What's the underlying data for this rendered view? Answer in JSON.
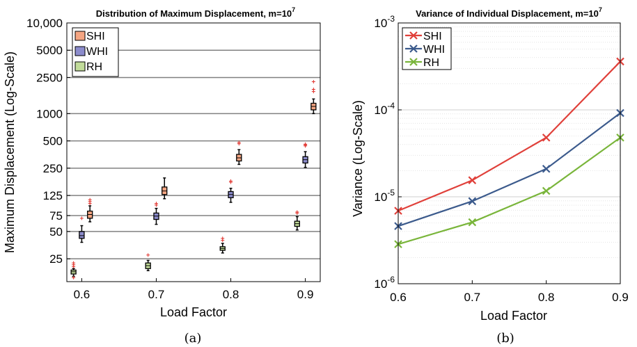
{
  "chart_data": [
    {
      "type": "box",
      "title": "Distribution of Maximum Displacement, m=10",
      "title_exponent": "7",
      "xlabel": "Load Factor",
      "ylabel": "Maximum Displacement (Log-Scale)",
      "y_scale": "log",
      "ylim": [
        14,
        10000
      ],
      "xlim": [
        0.58,
        0.92
      ],
      "x_ticks": [
        "0.6",
        "0.7",
        "0.8",
        "0.9"
      ],
      "y_ticks": [
        "25",
        "50",
        "75",
        "125",
        "250",
        "500",
        "1000",
        "2500",
        "5000",
        "10,000"
      ],
      "grid": "horizontal",
      "legend_position": "top-left",
      "caption": "(a)",
      "series": [
        {
          "name": "SHI",
          "color": "#f4a582",
          "boxes": [
            {
              "x": 0.6,
              "whisker_low": 64,
              "q1": 70,
              "median": 77,
              "q3": 84,
              "whisker_high": 96,
              "outliers": [
                102,
                107,
                112
              ]
            },
            {
              "x": 0.7,
              "whisker_low": 115,
              "q1": 128,
              "median": 140,
              "q3": 155,
              "whisker_high": 195,
              "outliers": []
            },
            {
              "x": 0.8,
              "whisker_low": 275,
              "q1": 300,
              "median": 325,
              "q3": 355,
              "whisker_high": 400,
              "outliers": [
                465,
                480
              ]
            },
            {
              "x": 0.9,
              "whisker_low": 1000,
              "q1": 1100,
              "median": 1200,
              "q3": 1300,
              "whisker_high": 1450,
              "outliers": [
                1750,
                1850,
                2250
              ]
            }
          ]
        },
        {
          "name": "WHI",
          "color": "#8c8ccc",
          "boxes": [
            {
              "x": 0.6,
              "whisker_low": 38,
              "q1": 42,
              "median": 45,
              "q3": 50,
              "whisker_high": 58,
              "outliers": [
                70
              ]
            },
            {
              "x": 0.7,
              "whisker_low": 60,
              "q1": 68,
              "median": 74,
              "q3": 80,
              "whisker_high": 90,
              "outliers": [
                98,
                102
              ]
            },
            {
              "x": 0.8,
              "whisker_low": 105,
              "q1": 118,
              "median": 128,
              "q3": 138,
              "whisker_high": 150,
              "outliers": [
                175,
                180
              ]
            },
            {
              "x": 0.9,
              "whisker_low": 255,
              "q1": 285,
              "median": 310,
              "q3": 335,
              "whisker_high": 380,
              "outliers": [
                440,
                450,
                460
              ]
            }
          ]
        },
        {
          "name": "RH",
          "color": "#c2dc9a",
          "boxes": [
            {
              "x": 0.6,
              "whisker_low": 16,
              "q1": 17,
              "median": 18,
              "q3": 18.8,
              "whisker_high": 19.5,
              "outliers": [
                15.5,
                20.5,
                21.5,
                22.5
              ]
            },
            {
              "x": 0.7,
              "whisker_low": 18.5,
              "q1": 19.5,
              "median": 21,
              "q3": 22.5,
              "whisker_high": 24,
              "outliers": [
                27.5
              ]
            },
            {
              "x": 0.8,
              "whisker_low": 29,
              "q1": 31,
              "median": 32.5,
              "q3": 34,
              "whisker_high": 37,
              "outliers": [
                40,
                42
              ]
            },
            {
              "x": 0.9,
              "whisker_low": 52,
              "q1": 57,
              "median": 61,
              "q3": 65,
              "whisker_high": 73,
              "outliers": [
                80,
                82
              ]
            }
          ]
        }
      ]
    },
    {
      "type": "line",
      "title": "Variance of Individual Displacement, m=10",
      "title_exponent": "7",
      "xlabel": "Load Factor",
      "ylabel": "Variance (Log-Scale)",
      "y_scale": "log",
      "ylim": [
        1e-06,
        0.001
      ],
      "xlim": [
        0.6,
        0.9
      ],
      "x_ticks": [
        "0.6",
        "0.7",
        "0.8",
        "0.9"
      ],
      "y_ticks": [
        {
          "base": "10",
          "exp": "-6"
        },
        {
          "base": "10",
          "exp": "-5"
        },
        {
          "base": "10",
          "exp": "-4"
        },
        {
          "base": "10",
          "exp": "-3"
        }
      ],
      "grid": "horizontal-minor",
      "legend_position": "top-left",
      "caption": "(b)",
      "x": [
        0.6,
        0.7,
        0.8,
        0.9
      ],
      "series": [
        {
          "name": "SHI",
          "color": "#e0403a",
          "marker": "x",
          "values": [
            6.9e-06,
            1.55e-05,
            4.8e-05,
            0.00036
          ]
        },
        {
          "name": "WHI",
          "color": "#3b5a8c",
          "marker": "x",
          "values": [
            4.6e-06,
            8.9e-06,
            2.1e-05,
            9.2e-05
          ]
        },
        {
          "name": "RH",
          "color": "#79b53a",
          "marker": "x",
          "values": [
            2.85e-06,
            5.1e-06,
            1.17e-05,
            4.8e-05
          ]
        }
      ]
    }
  ]
}
